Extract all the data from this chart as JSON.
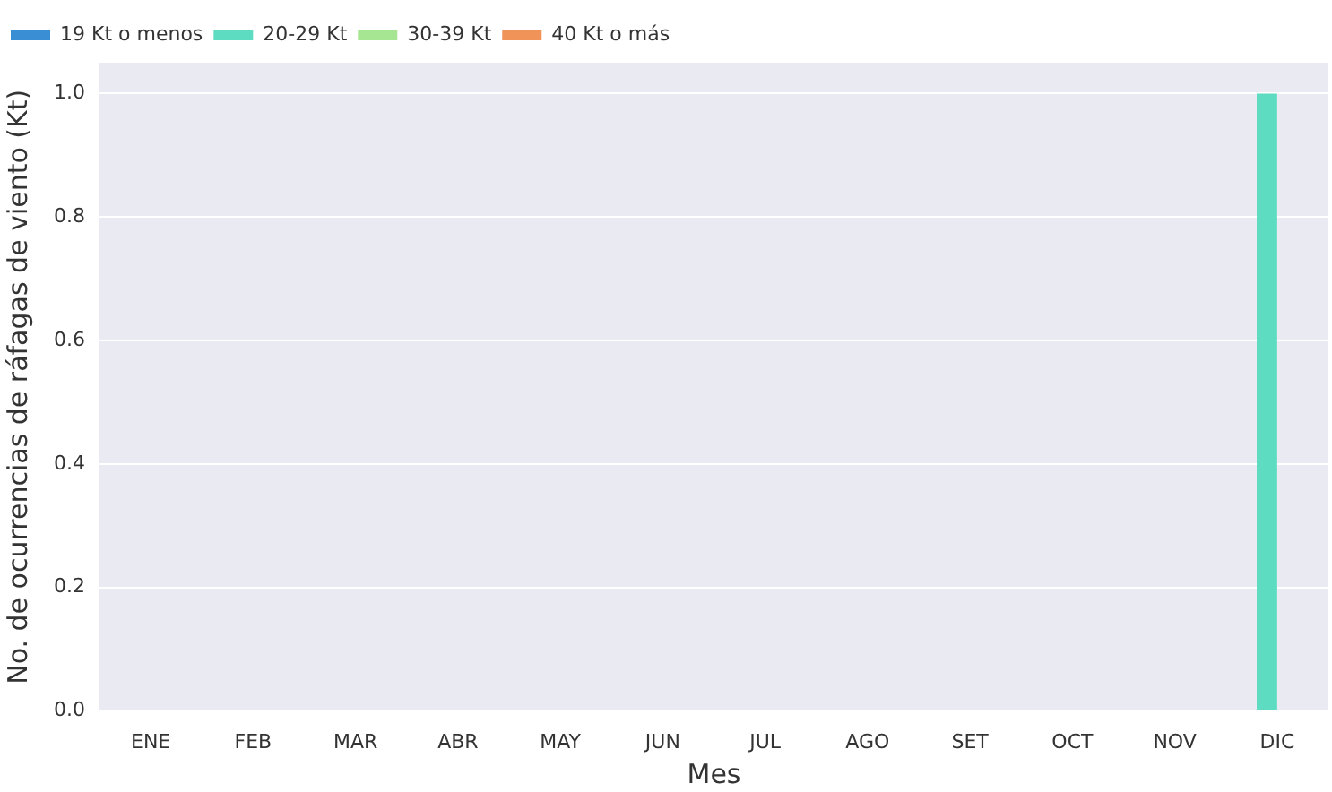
{
  "chart_data": {
    "type": "bar",
    "xlabel": "Mes",
    "ylabel": "No. de ocurrencias de ráfagas de viento (Kt)",
    "categories": [
      "ENE",
      "FEB",
      "MAR",
      "ABR",
      "MAY",
      "JUN",
      "JUL",
      "AGO",
      "SET",
      "OCT",
      "NOV",
      "DIC"
    ],
    "series": [
      {
        "name": "19 Kt o menos",
        "color": "#3a8ed4",
        "values": [
          0,
          0,
          0,
          0,
          0,
          0,
          0,
          0,
          0,
          0,
          0,
          0
        ]
      },
      {
        "name": "20-29 Kt",
        "color": "#5edcc2",
        "values": [
          0,
          0,
          0,
          0,
          0,
          0,
          0,
          0,
          0,
          0,
          0,
          1
        ]
      },
      {
        "name": "30-39 Kt",
        "color": "#a6e591",
        "values": [
          0,
          0,
          0,
          0,
          0,
          0,
          0,
          0,
          0,
          0,
          0,
          0
        ]
      },
      {
        "name": "40 Kt o más",
        "color": "#ef9359",
        "values": [
          0,
          0,
          0,
          0,
          0,
          0,
          0,
          0,
          0,
          0,
          0,
          0
        ]
      }
    ],
    "ylim": [
      0,
      1.05
    ],
    "yticks": [
      {
        "value": 0,
        "label": "0.0"
      },
      {
        "value": 0.2,
        "label": "0.2"
      },
      {
        "value": 0.4,
        "label": "0.4"
      },
      {
        "value": 0.6,
        "label": "0.6"
      },
      {
        "value": 0.8,
        "label": "0.8"
      },
      {
        "value": 1,
        "label": "1.0"
      }
    ],
    "grid": "y",
    "legend": "top left"
  }
}
